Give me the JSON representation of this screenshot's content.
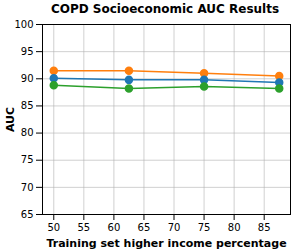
{
  "chart_data": {
    "type": "line",
    "title": "COPD Socioeconomic AUC Results",
    "x_label": "Training set higher income percentage",
    "y_label": "AUC",
    "x": [
      50,
      62.5,
      75,
      87.5
    ],
    "series": [
      {
        "color": "#ff7f0e",
        "values": [
          91.5,
          91.5,
          91.0,
          90.5
        ],
        "marker": "o",
        "line_style": "solid"
      },
      {
        "color": "#1f77b4",
        "values": [
          90.1,
          89.8,
          89.8,
          89.3
        ],
        "marker": "o",
        "line_style": "solid"
      },
      {
        "color": "#2ca02c",
        "values": [
          88.8,
          88.2,
          88.6,
          88.2
        ],
        "marker": "o",
        "line_style": "solid"
      }
    ],
    "xlim": [
      48.125,
      89.375
    ],
    "xticks": [
      50,
      55,
      60,
      65,
      70,
      75,
      80,
      85
    ],
    "ylim": [
      65,
      100
    ],
    "yticks": [
      65,
      70,
      75,
      80,
      85,
      90,
      95,
      100
    ],
    "grid": true
  }
}
